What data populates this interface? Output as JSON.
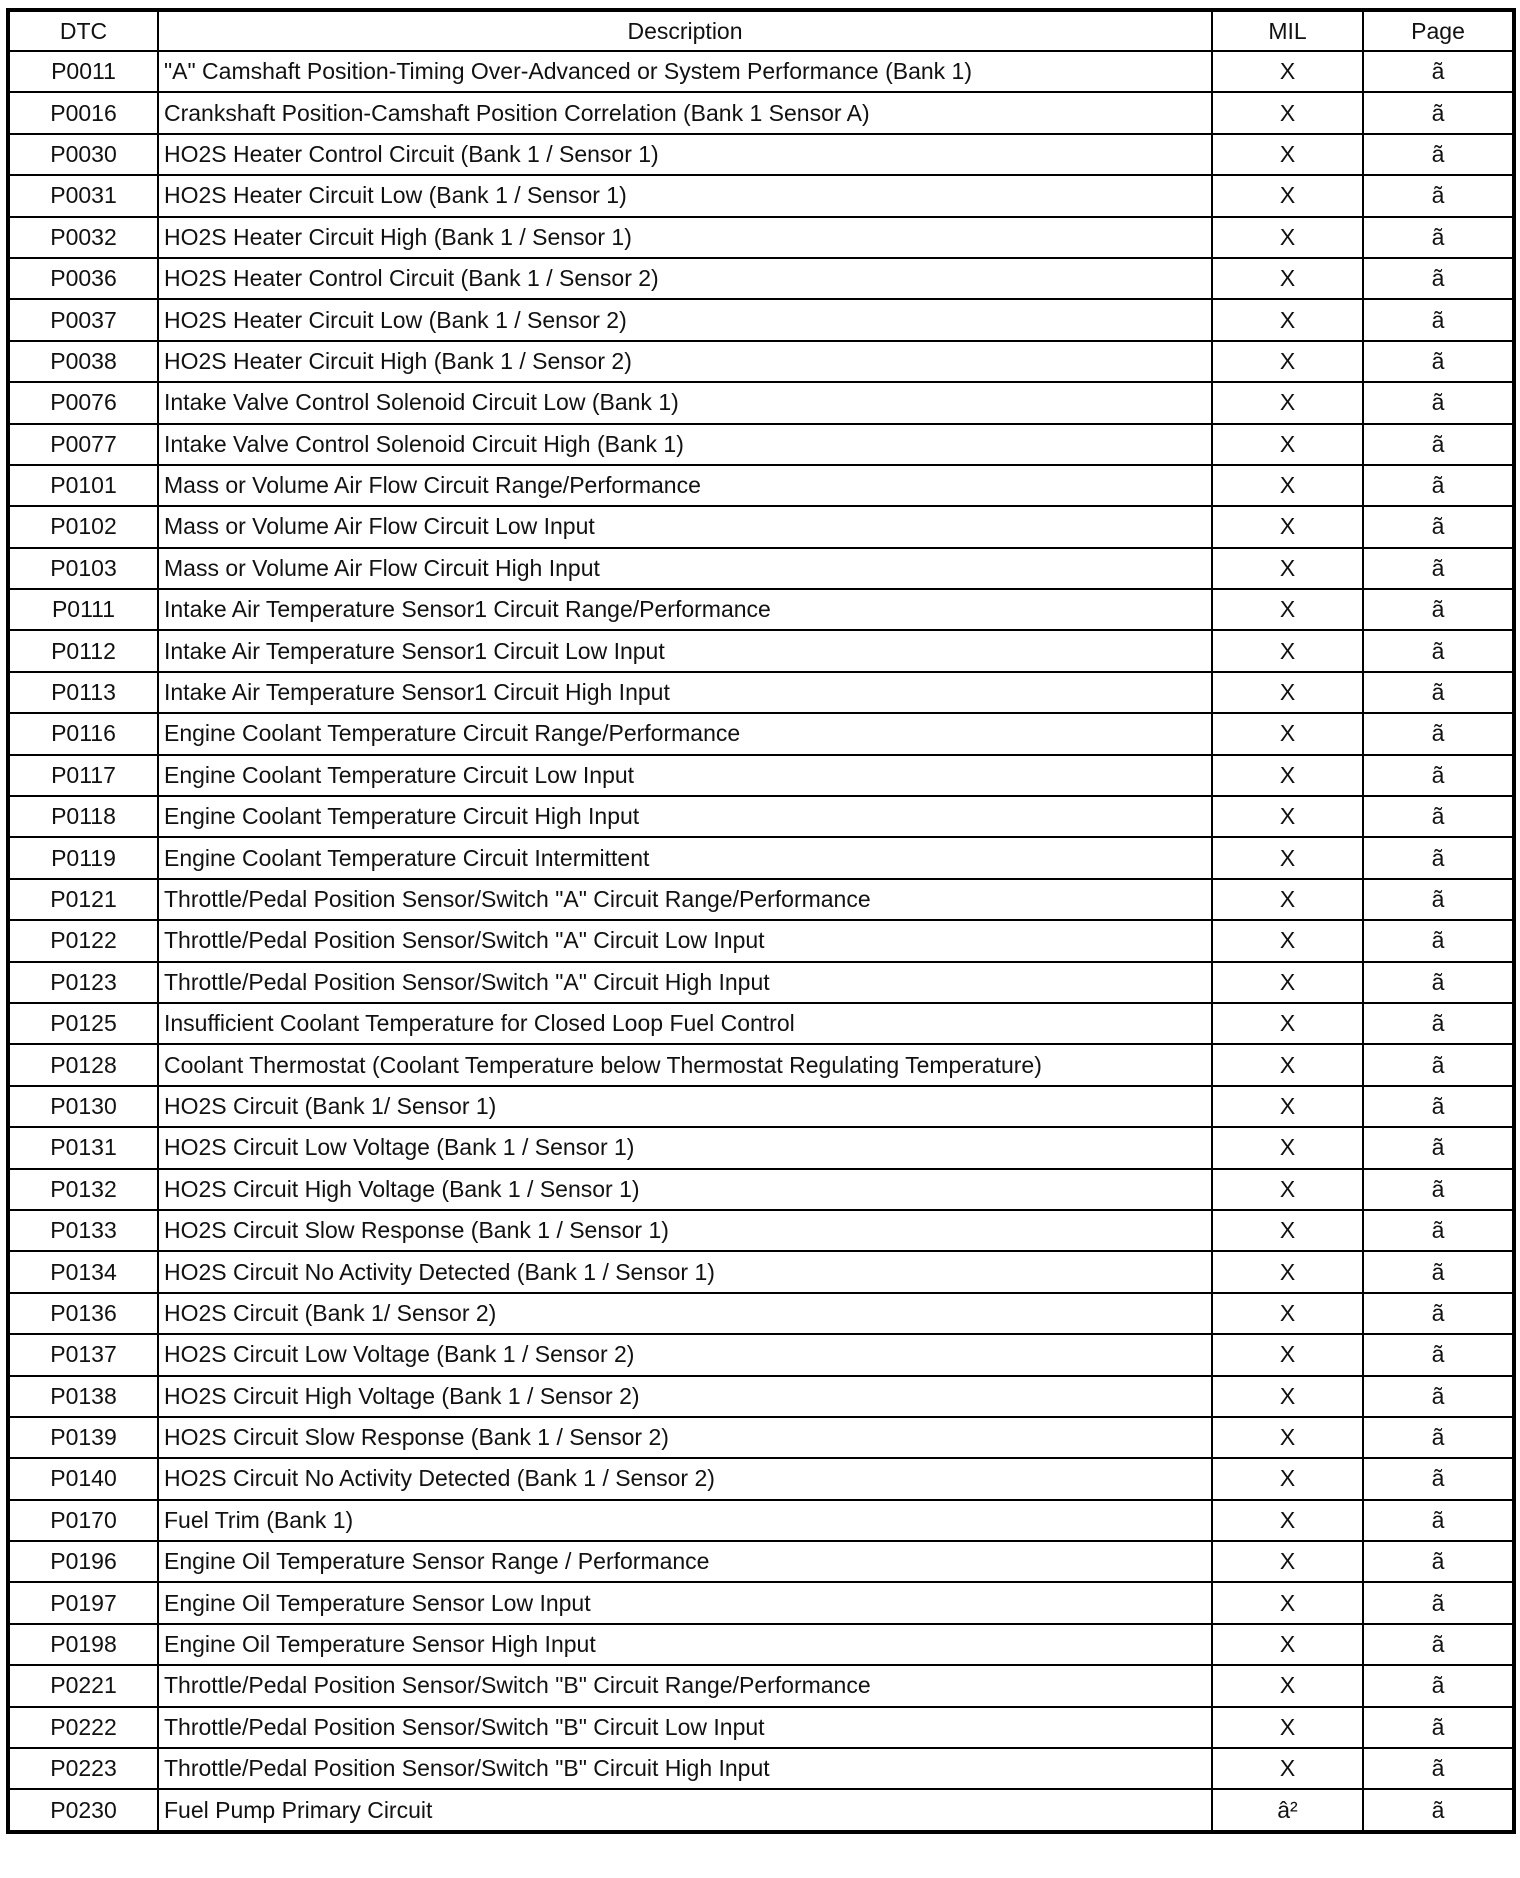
{
  "table": {
    "headers": {
      "dtc": "DTC",
      "description": "Description",
      "mil": "MIL",
      "page": "Page"
    },
    "rows": [
      {
        "dtc": "P0011",
        "description": "\"A\" Camshaft Position-Timing Over-Advanced or System Performance (Bank 1)",
        "mil": "X",
        "page": "ã"
      },
      {
        "dtc": "P0016",
        "description": "Crankshaft Position-Camshaft Position Correlation (Bank 1 Sensor A)",
        "mil": "X",
        "page": "ã"
      },
      {
        "dtc": "P0030",
        "description": "HO2S Heater Control Circuit (Bank 1 / Sensor 1)",
        "mil": "X",
        "page": "ã"
      },
      {
        "dtc": "P0031",
        "description": "HO2S Heater Circuit Low (Bank 1 / Sensor 1)",
        "mil": "X",
        "page": "ã"
      },
      {
        "dtc": "P0032",
        "description": "HO2S Heater Circuit High (Bank 1 / Sensor 1)",
        "mil": "X",
        "page": "ã"
      },
      {
        "dtc": "P0036",
        "description": "HO2S Heater Control Circuit (Bank 1 / Sensor 2)",
        "mil": "X",
        "page": "ã"
      },
      {
        "dtc": "P0037",
        "description": "HO2S Heater Circuit Low (Bank 1 / Sensor 2)",
        "mil": "X",
        "page": "ã"
      },
      {
        "dtc": "P0038",
        "description": "HO2S Heater Circuit High (Bank 1 / Sensor 2)",
        "mil": "X",
        "page": "ã"
      },
      {
        "dtc": "P0076",
        "description": "Intake Valve Control Solenoid Circuit Low (Bank 1)",
        "mil": "X",
        "page": "ã"
      },
      {
        "dtc": "P0077",
        "description": "Intake Valve Control Solenoid Circuit High (Bank 1)",
        "mil": "X",
        "page": "ã"
      },
      {
        "dtc": "P0101",
        "description": "Mass or Volume Air Flow Circuit Range/Performance",
        "mil": "X",
        "page": "ã"
      },
      {
        "dtc": "P0102",
        "description": "Mass or Volume Air Flow Circuit Low Input",
        "mil": "X",
        "page": "ã"
      },
      {
        "dtc": "P0103",
        "description": "Mass or Volume Air Flow Circuit High Input",
        "mil": "X",
        "page": "ã"
      },
      {
        "dtc": "P0111",
        "description": "Intake Air Temperature Sensor1 Circuit Range/Performance",
        "mil": "X",
        "page": "ã"
      },
      {
        "dtc": "P0112",
        "description": "Intake Air Temperature Sensor1 Circuit Low Input",
        "mil": "X",
        "page": "ã"
      },
      {
        "dtc": "P0113",
        "description": "Intake Air Temperature Sensor1 Circuit High Input",
        "mil": "X",
        "page": "ã"
      },
      {
        "dtc": "P0116",
        "description": "Engine Coolant Temperature Circuit Range/Performance",
        "mil": "X",
        "page": "ã"
      },
      {
        "dtc": "P0117",
        "description": "Engine Coolant Temperature Circuit Low Input",
        "mil": "X",
        "page": "ã"
      },
      {
        "dtc": "P0118",
        "description": "Engine Coolant Temperature Circuit High Input",
        "mil": "X",
        "page": "ã"
      },
      {
        "dtc": "P0119",
        "description": "Engine Coolant Temperature Circuit Intermittent",
        "mil": "X",
        "page": "ã"
      },
      {
        "dtc": "P0121",
        "description": "Throttle/Pedal Position Sensor/Switch \"A\" Circuit Range/Performance",
        "mil": "X",
        "page": "ã"
      },
      {
        "dtc": "P0122",
        "description": "Throttle/Pedal Position Sensor/Switch \"A\" Circuit Low Input",
        "mil": "X",
        "page": "ã"
      },
      {
        "dtc": "P0123",
        "description": "Throttle/Pedal Position Sensor/Switch \"A\" Circuit High Input",
        "mil": "X",
        "page": "ã"
      },
      {
        "dtc": "P0125",
        "description": "Insufficient Coolant Temperature for Closed Loop Fuel Control",
        "mil": "X",
        "page": "ã"
      },
      {
        "dtc": "P0128",
        "description": "Coolant Thermostat (Coolant Temperature below Thermostat Regulating Temperature)",
        "mil": "X",
        "page": "ã"
      },
      {
        "dtc": "P0130",
        "description": "HO2S Circuit (Bank 1/ Sensor 1)",
        "mil": "X",
        "page": "ã"
      },
      {
        "dtc": "P0131",
        "description": "HO2S Circuit Low Voltage (Bank 1 / Sensor 1)",
        "mil": "X",
        "page": "ã"
      },
      {
        "dtc": "P0132",
        "description": "HO2S Circuit High Voltage (Bank 1 / Sensor 1)",
        "mil": "X",
        "page": "ã"
      },
      {
        "dtc": "P0133",
        "description": "HO2S Circuit Slow Response (Bank 1 / Sensor 1)",
        "mil": "X",
        "page": "ã"
      },
      {
        "dtc": "P0134",
        "description": "HO2S Circuit No Activity Detected (Bank 1 / Sensor 1)",
        "mil": "X",
        "page": "ã"
      },
      {
        "dtc": "P0136",
        "description": "HO2S Circuit (Bank 1/ Sensor 2)",
        "mil": "X",
        "page": "ã"
      },
      {
        "dtc": "P0137",
        "description": "HO2S Circuit Low Voltage (Bank 1 / Sensor 2)",
        "mil": "X",
        "page": "ã"
      },
      {
        "dtc": "P0138",
        "description": "HO2S Circuit High Voltage (Bank 1 / Sensor 2)",
        "mil": "X",
        "page": "ã"
      },
      {
        "dtc": "P0139",
        "description": "HO2S Circuit Slow Response (Bank 1 / Sensor 2)",
        "mil": "X",
        "page": "ã"
      },
      {
        "dtc": "P0140",
        "description": "HO2S Circuit No Activity Detected (Bank 1 / Sensor 2)",
        "mil": "X",
        "page": "ã"
      },
      {
        "dtc": "P0170",
        "description": "Fuel Trim (Bank 1)",
        "mil": "X",
        "page": "ã"
      },
      {
        "dtc": "P0196",
        "description": "Engine Oil Temperature Sensor Range / Performance",
        "mil": "X",
        "page": "ã"
      },
      {
        "dtc": "P0197",
        "description": "Engine Oil Temperature Sensor Low Input",
        "mil": "X",
        "page": "ã"
      },
      {
        "dtc": "P0198",
        "description": "Engine Oil Temperature Sensor High Input",
        "mil": "X",
        "page": "ã"
      },
      {
        "dtc": "P0221",
        "description": "Throttle/Pedal Position Sensor/Switch \"B\" Circuit Range/Performance",
        "mil": "X",
        "page": "ã"
      },
      {
        "dtc": "P0222",
        "description": "Throttle/Pedal Position Sensor/Switch \"B\" Circuit Low Input",
        "mil": "X",
        "page": "ã"
      },
      {
        "dtc": "P0223",
        "description": "Throttle/Pedal Position Sensor/Switch \"B\" Circuit High Input",
        "mil": "X",
        "page": "ã"
      },
      {
        "dtc": "P0230",
        "description": "Fuel Pump Primary Circuit",
        "mil": "â²",
        "page": "ã"
      }
    ]
  }
}
